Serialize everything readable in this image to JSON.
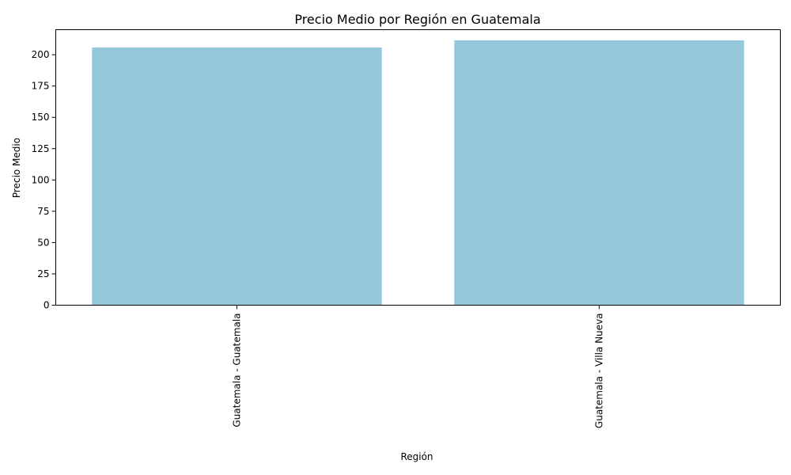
{
  "chart_data": {
    "type": "bar",
    "title": "Precio Medio por Región en Guatemala",
    "xlabel": "Región",
    "ylabel": "Precio Medio",
    "categories": [
      "Guatemala - Guatemala",
      "Guatemala - Villa Nueva"
    ],
    "values": [
      205.8,
      211.5
    ],
    "ylim": [
      0,
      220
    ],
    "yticks": [
      "0",
      "25",
      "50",
      "75",
      "100",
      "125",
      "150",
      "175",
      "200"
    ],
    "bar_color": "#96c8dc",
    "grid": false,
    "legend": false
  }
}
